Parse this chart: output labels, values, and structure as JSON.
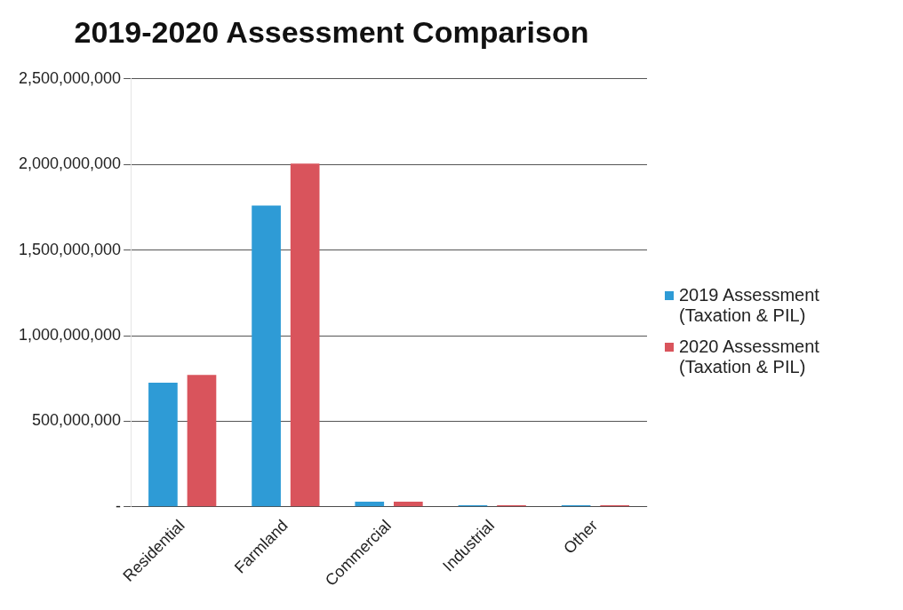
{
  "chart_data": {
    "type": "bar",
    "title": "2019-2020 Assessment Comparison",
    "categories": [
      "Residential",
      "Farmland",
      "Commercial",
      "Industrial",
      "Other"
    ],
    "series": [
      {
        "name": "2019 Assessment (Taxation & PIL)",
        "color": "#2e9bd6",
        "values": [
          725000000,
          1760000000,
          30000000,
          10000000,
          10000000
        ]
      },
      {
        "name": "2020 Assessment (Taxation & PIL)",
        "color": "#d9545c",
        "values": [
          770000000,
          2005000000,
          30000000,
          10000000,
          10000000
        ]
      }
    ],
    "ylim": [
      0,
      2500000000
    ],
    "yticks": [
      {
        "value": 0,
        "label": "-"
      },
      {
        "value": 500000000,
        "label": "500,000,000"
      },
      {
        "value": 1000000000,
        "label": "1,000,000,000"
      },
      {
        "value": 1500000000,
        "label": "1,500,000,000"
      },
      {
        "value": 2000000000,
        "label": "2,000,000,000"
      },
      {
        "value": 2500000000,
        "label": "2,500,000,000"
      }
    ],
    "grid": "y",
    "legend": "right"
  }
}
